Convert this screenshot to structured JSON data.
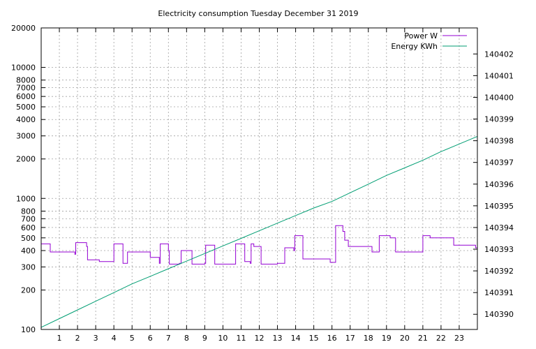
{
  "chart_data": {
    "type": "line",
    "title": "Electricity consumption Tuesday December 31 2019",
    "x_ticks": [
      "1",
      "2",
      "3",
      "4",
      "5",
      "6",
      "7",
      "8",
      "9",
      "10",
      "11",
      "12",
      "13",
      "14",
      "15",
      "16",
      "17",
      "18",
      "19",
      "20",
      "21",
      "22",
      "23"
    ],
    "xlim": [
      0,
      24
    ],
    "y_left": {
      "scale": "log",
      "ylim": [
        100,
        20000
      ],
      "ticks": [
        {
          "value": 100,
          "label": "100"
        },
        {
          "value": 200,
          "label": "200"
        },
        {
          "value": 300,
          "label": "300"
        },
        {
          "value": 400,
          "label": "400"
        },
        {
          "value": 500,
          "label": "500"
        },
        {
          "value": 600,
          "label": "600"
        },
        {
          "value": 700,
          "label": "700"
        },
        {
          "value": 800,
          "label": "800"
        },
        {
          "value": 1000,
          "label": "1000"
        },
        {
          "value": 2000,
          "label": "2000"
        },
        {
          "value": 3000,
          "label": "3000"
        },
        {
          "value": 4000,
          "label": "4000"
        },
        {
          "value": 5000,
          "label": "5000"
        },
        {
          "value": 6000,
          "label": "6000"
        },
        {
          "value": 7000,
          "label": "7000"
        },
        {
          "value": 8000,
          "label": "8000"
        },
        {
          "value": 10000,
          "label": "10000"
        },
        {
          "value": 20000,
          "label": "20000"
        }
      ]
    },
    "y_right": {
      "scale": "linear",
      "ylim": [
        140389.3,
        140403.2
      ],
      "ticks": [
        {
          "value": 140390,
          "label": "140390"
        },
        {
          "value": 140391,
          "label": "140391"
        },
        {
          "value": 140392,
          "label": "140392"
        },
        {
          "value": 140393,
          "label": "140393"
        },
        {
          "value": 140394,
          "label": "140394"
        },
        {
          "value": 140395,
          "label": "140395"
        },
        {
          "value": 140396,
          "label": "140396"
        },
        {
          "value": 140397,
          "label": "140397"
        },
        {
          "value": 140398,
          "label": "140398"
        },
        {
          "value": 140399,
          "label": "140399"
        },
        {
          "value": 140400,
          "label": "140400"
        },
        {
          "value": 140401,
          "label": "140401"
        },
        {
          "value": 140402,
          "label": "140402"
        }
      ]
    },
    "grid": true,
    "legend_position": "top-right",
    "series": [
      {
        "name": "Power W",
        "axis": "left",
        "color": "#9400d3",
        "step": true,
        "points": [
          [
            0.0,
            450
          ],
          [
            0.5,
            390
          ],
          [
            1.85,
            375
          ],
          [
            1.9,
            460
          ],
          [
            2.5,
            430
          ],
          [
            2.55,
            340
          ],
          [
            3.2,
            330
          ],
          [
            4.0,
            450
          ],
          [
            4.5,
            320
          ],
          [
            4.75,
            390
          ],
          [
            6.0,
            355
          ],
          [
            6.5,
            320
          ],
          [
            6.55,
            450
          ],
          [
            7.0,
            400
          ],
          [
            7.05,
            315
          ],
          [
            7.6,
            320
          ],
          [
            7.7,
            400
          ],
          [
            8.3,
            315
          ],
          [
            9.0,
            320
          ],
          [
            9.05,
            440
          ],
          [
            9.55,
            315
          ],
          [
            10.7,
            450
          ],
          [
            11.2,
            330
          ],
          [
            11.5,
            320
          ],
          [
            11.55,
            450
          ],
          [
            11.7,
            430
          ],
          [
            12.1,
            315
          ],
          [
            13.0,
            320
          ],
          [
            13.4,
            420
          ],
          [
            13.9,
            400
          ],
          [
            13.95,
            520
          ],
          [
            14.4,
            345
          ],
          [
            15.9,
            325
          ],
          [
            16.2,
            620
          ],
          [
            16.6,
            560
          ],
          [
            16.7,
            480
          ],
          [
            16.9,
            430
          ],
          [
            18.2,
            390
          ],
          [
            18.6,
            520
          ],
          [
            19.2,
            500
          ],
          [
            19.5,
            390
          ],
          [
            21.0,
            520
          ],
          [
            21.4,
            500
          ],
          [
            22.7,
            440
          ],
          [
            23.9,
            420
          ],
          [
            24.0,
            420
          ]
        ]
      },
      {
        "name": "Energy KWh",
        "axis": "right",
        "color": "#009e73",
        "step": false,
        "points": [
          [
            0,
            140389.4
          ],
          [
            1,
            140389.8
          ],
          [
            2,
            140390.2
          ],
          [
            3,
            140390.6
          ],
          [
            4,
            140391.0
          ],
          [
            5,
            140391.4
          ],
          [
            6,
            140391.75
          ],
          [
            7,
            140392.1
          ],
          [
            8,
            140392.45
          ],
          [
            9,
            140392.8
          ],
          [
            10,
            140393.15
          ],
          [
            11,
            140393.5
          ],
          [
            12,
            140393.85
          ],
          [
            13,
            140394.2
          ],
          [
            14,
            140394.55
          ],
          [
            15,
            140394.9
          ],
          [
            16,
            140395.2
          ],
          [
            17,
            140395.6
          ],
          [
            18,
            140396.0
          ],
          [
            19,
            140396.4
          ],
          [
            20,
            140396.75
          ],
          [
            21,
            140397.1
          ],
          [
            22,
            140397.5
          ],
          [
            23,
            140397.85
          ],
          [
            24,
            140398.2
          ]
        ]
      }
    ]
  }
}
